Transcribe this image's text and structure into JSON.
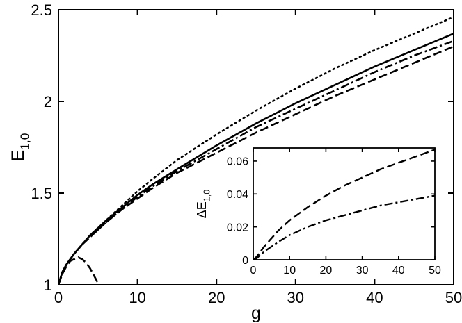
{
  "chart_data": [
    {
      "type": "line",
      "title": "",
      "xlabel": "g",
      "ylabel": "E",
      "ylabel_subscript": "1,0",
      "xlim": [
        0,
        50
      ],
      "ylim": [
        1,
        2.5
      ],
      "grid": false,
      "x_ticks": [
        0,
        10,
        20,
        30,
        40,
        50
      ],
      "x_tick_labels": [
        "0",
        "10",
        "20",
        "30",
        "40",
        "50"
      ],
      "y_ticks": [
        1,
        1.5,
        2,
        2.5
      ],
      "y_tick_labels": [
        "1",
        "1.5",
        "2",
        "2.5"
      ],
      "series": [
        {
          "style": "solid",
          "x": [
            0,
            0.5,
            1,
            2,
            3,
            4,
            5,
            6,
            8,
            10,
            12,
            15,
            20,
            25,
            30,
            35,
            40,
            45,
            50
          ],
          "y": [
            1.0,
            1.07,
            1.11,
            1.17,
            1.22,
            1.27,
            1.31,
            1.35,
            1.42,
            1.49,
            1.55,
            1.63,
            1.76,
            1.88,
            1.99,
            2.09,
            2.19,
            2.28,
            2.37
          ]
        },
        {
          "style": "dotted",
          "x": [
            0,
            0.5,
            1,
            2,
            3,
            4,
            5,
            6,
            8,
            10,
            12,
            15,
            20,
            25,
            30,
            35,
            40,
            45,
            50
          ],
          "y": [
            1.0,
            1.07,
            1.11,
            1.17,
            1.22,
            1.27,
            1.31,
            1.35,
            1.43,
            1.51,
            1.58,
            1.68,
            1.82,
            1.95,
            2.07,
            2.18,
            2.28,
            2.37,
            2.46
          ]
        },
        {
          "style": "dash-dot",
          "x": [
            0,
            0.5,
            1,
            2,
            3,
            4,
            5,
            6,
            8,
            10,
            12,
            15,
            20,
            25,
            30,
            35,
            40,
            45,
            50
          ],
          "y": [
            1.0,
            1.07,
            1.11,
            1.17,
            1.22,
            1.26,
            1.3,
            1.34,
            1.41,
            1.48,
            1.54,
            1.62,
            1.74,
            1.86,
            1.96,
            2.06,
            2.16,
            2.25,
            2.33
          ]
        },
        {
          "style": "dashed",
          "x": [
            0,
            0.5,
            1,
            2,
            3,
            4,
            5,
            6,
            8,
            10,
            12,
            15,
            20,
            25,
            30,
            35,
            40,
            45,
            50
          ],
          "y": [
            1.0,
            1.07,
            1.11,
            1.17,
            1.22,
            1.26,
            1.3,
            1.34,
            1.41,
            1.47,
            1.53,
            1.61,
            1.72,
            1.83,
            1.93,
            2.03,
            2.12,
            2.21,
            2.3
          ]
        },
        {
          "style": "dashed",
          "x": [
            0,
            0.5,
            1,
            1.5,
            2,
            2.5,
            3,
            3.5,
            4,
            4.5,
            5,
            5.2
          ],
          "y": [
            1.0,
            1.06,
            1.1,
            1.13,
            1.14,
            1.15,
            1.14,
            1.12,
            1.09,
            1.05,
            1.01,
            0.99
          ]
        }
      ]
    },
    {
      "type": "line",
      "title": "",
      "xlabel": "",
      "ylabel": "ΔE",
      "ylabel_subscript": "1,0",
      "xlim": [
        0,
        50
      ],
      "ylim": [
        0,
        0.068
      ],
      "grid": false,
      "placement": "inset, lower-right",
      "x_ticks": [
        0,
        10,
        20,
        30,
        40,
        50
      ],
      "x_tick_labels": [
        "0",
        "10",
        "20",
        "30",
        "40",
        "50"
      ],
      "y_ticks": [
        0,
        0.02,
        0.04,
        0.06
      ],
      "y_tick_labels": [
        "0",
        "0.02",
        "0.04",
        "0.06"
      ],
      "series": [
        {
          "style": "dashed",
          "x": [
            0,
            1,
            2,
            3,
            5,
            7,
            10,
            15,
            20,
            25,
            30,
            35,
            40,
            45,
            50
          ],
          "y": [
            0,
            0.002,
            0.005,
            0.008,
            0.013,
            0.018,
            0.024,
            0.032,
            0.039,
            0.045,
            0.05,
            0.055,
            0.059,
            0.063,
            0.067
          ]
        },
        {
          "style": "dash-dot",
          "x": [
            0,
            1,
            2,
            3,
            5,
            7,
            10,
            15,
            20,
            25,
            30,
            35,
            40,
            45,
            50
          ],
          "y": [
            0,
            0.001,
            0.003,
            0.005,
            0.008,
            0.011,
            0.015,
            0.02,
            0.024,
            0.027,
            0.03,
            0.033,
            0.035,
            0.037,
            0.039
          ]
        }
      ]
    }
  ]
}
